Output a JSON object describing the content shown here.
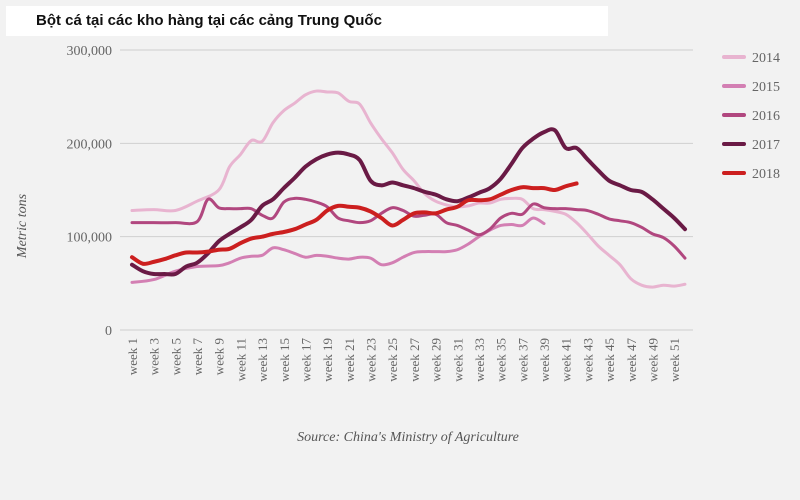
{
  "title": "Bột cá tại các kho hàng tại các cảng Trung Quốc",
  "source": "Source: China's Ministry of Agriculture",
  "chart_data": {
    "type": "line",
    "title": "Bột cá tại các kho hàng tại các cảng Trung Quốc",
    "ylabel": "Metric tons",
    "xlabel": "",
    "ylim": [
      0,
      300000
    ],
    "yticks": [
      0,
      100000,
      200000,
      300000
    ],
    "ytick_labels": [
      "0",
      "100,000",
      "200,000",
      "300,000"
    ],
    "x_tick_labels": [
      "week 1",
      "week 3",
      "week 5",
      "week 7",
      "week 9",
      "week 11",
      "week 13",
      "week 15",
      "week 17",
      "week 19",
      "week 21",
      "week 23",
      "week 25",
      "week 27",
      "week 29",
      "week 31",
      "week 33",
      "week 35",
      "week 37",
      "week 39",
      "week 41",
      "week 43",
      "week 45",
      "week 47",
      "week 49",
      "week 51"
    ],
    "x_range": [
      1,
      52
    ],
    "grid": true,
    "legend_position": "right",
    "series": [
      {
        "name": "2014",
        "color": "#e8b4d0",
        "width": 3,
        "x": [
          1,
          3,
          5,
          7,
          9,
          10,
          11,
          12,
          13,
          14,
          15,
          16,
          17,
          18,
          19,
          20,
          21,
          22,
          23,
          24,
          25,
          26,
          27,
          28,
          29,
          30,
          31,
          32,
          33,
          34,
          35,
          36,
          37,
          38,
          39,
          40,
          41,
          42,
          43,
          44,
          45,
          46,
          47,
          48,
          49,
          50,
          51,
          52
        ],
        "values": [
          128000,
          129000,
          128000,
          138000,
          150000,
          175000,
          188000,
          203000,
          202000,
          222000,
          235000,
          243000,
          252000,
          256000,
          255000,
          254000,
          245000,
          242000,
          222000,
          205000,
          190000,
          172000,
          160000,
          146000,
          138000,
          134000,
          132000,
          133000,
          136000,
          136000,
          140000,
          141000,
          140000,
          130000,
          129000,
          127000,
          124000,
          115000,
          103000,
          90000,
          80000,
          70000,
          55000,
          48000,
          46000,
          48000,
          47000,
          49000
        ]
      },
      {
        "name": "2015",
        "color": "#d37fb3",
        "width": 3,
        "x": [
          1,
          3,
          5,
          7,
          9,
          10,
          11,
          12,
          13,
          14,
          15,
          16,
          17,
          18,
          19,
          20,
          21,
          22,
          23,
          24,
          25,
          26,
          27,
          28,
          29,
          30,
          31,
          32,
          33,
          34,
          35,
          36,
          37,
          38,
          39
        ],
        "values": [
          51000,
          54000,
          63000,
          68000,
          69000,
          72000,
          77000,
          79000,
          80000,
          88000,
          86000,
          82000,
          78000,
          80000,
          79000,
          77000,
          76000,
          78000,
          77000,
          70000,
          72000,
          78000,
          83000,
          84000,
          84000,
          84000,
          86000,
          92000,
          100000,
          107000,
          112000,
          113000,
          112000,
          120000,
          114000
        ]
      },
      {
        "name": "2016",
        "color": "#b1477f",
        "width": 3,
        "x": [
          1,
          3,
          5,
          7,
          8,
          9,
          10,
          11,
          12,
          13,
          14,
          15,
          16,
          17,
          18,
          19,
          20,
          21,
          22,
          23,
          24,
          25,
          26,
          27,
          28,
          29,
          30,
          31,
          32,
          33,
          34,
          35,
          36,
          37,
          38,
          39,
          40,
          41,
          42,
          43,
          44,
          45,
          46,
          47,
          48,
          49,
          50,
          51,
          52
        ],
        "values": [
          115000,
          115000,
          115000,
          116000,
          140000,
          131000,
          130000,
          130000,
          130000,
          123000,
          120000,
          137000,
          141000,
          140000,
          137000,
          132000,
          120000,
          117000,
          115000,
          117000,
          125000,
          131000,
          128000,
          122000,
          123000,
          124000,
          115000,
          112000,
          107000,
          102000,
          108000,
          120000,
          125000,
          124000,
          135000,
          131000,
          130000,
          130000,
          129000,
          128000,
          124000,
          119000,
          117000,
          115000,
          110000,
          103000,
          99000,
          90000,
          77000
        ]
      },
      {
        "name": "2017",
        "color": "#6a1a45",
        "width": 4,
        "x": [
          1,
          2,
          3,
          4,
          5,
          6,
          7,
          8,
          9,
          10,
          11,
          12,
          13,
          14,
          15,
          16,
          17,
          18,
          19,
          20,
          21,
          22,
          23,
          24,
          25,
          26,
          27,
          28,
          29,
          30,
          31,
          32,
          33,
          34,
          35,
          36,
          37,
          38,
          39,
          40,
          41,
          42,
          43,
          44,
          45,
          46,
          47,
          48,
          49,
          50,
          51,
          52
        ],
        "values": [
          70000,
          63000,
          60000,
          60000,
          60000,
          68000,
          72000,
          82000,
          95000,
          103000,
          110000,
          118000,
          133000,
          140000,
          152000,
          163000,
          175000,
          183000,
          188000,
          190000,
          188000,
          182000,
          160000,
          155000,
          158000,
          155000,
          152000,
          148000,
          145000,
          140000,
          138000,
          142000,
          147000,
          152000,
          162000,
          178000,
          195000,
          205000,
          212000,
          214000,
          195000,
          195000,
          183000,
          171000,
          160000,
          155000,
          150000,
          148000,
          140000,
          130000,
          120000,
          108000
        ]
      },
      {
        "name": "2018",
        "color": "#cc1f1f",
        "width": 4,
        "x": [
          1,
          2,
          3,
          4,
          5,
          6,
          7,
          8,
          9,
          10,
          11,
          12,
          13,
          14,
          15,
          16,
          17,
          18,
          19,
          20,
          21,
          22,
          23,
          24,
          25,
          26,
          27,
          28,
          29,
          30,
          31,
          32,
          33,
          34,
          35,
          36,
          37,
          38,
          39,
          40,
          41,
          42
        ],
        "values": [
          78000,
          71000,
          73000,
          76000,
          80000,
          83000,
          83000,
          84000,
          86000,
          87000,
          93000,
          98000,
          100000,
          103000,
          105000,
          108000,
          113000,
          118000,
          128000,
          133000,
          132000,
          131000,
          127000,
          120000,
          112000,
          118000,
          125000,
          126000,
          125000,
          129000,
          132000,
          139000,
          139000,
          140000,
          145000,
          150000,
          153000,
          152000,
          152000,
          150000,
          154000,
          157000
        ]
      }
    ]
  }
}
